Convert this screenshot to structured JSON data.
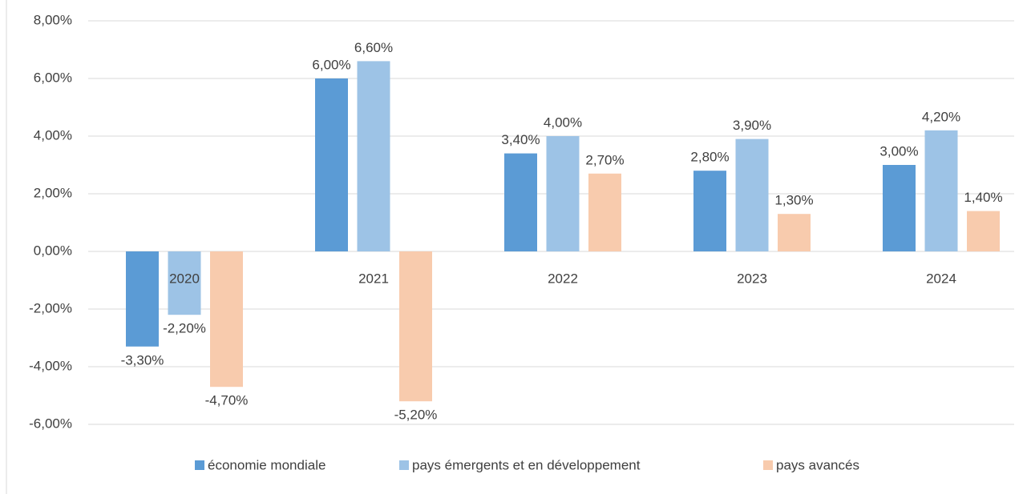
{
  "chart_data": {
    "type": "bar",
    "categories": [
      "2020",
      "2021",
      "2022",
      "2023",
      "2024"
    ],
    "series": [
      {
        "name": "économie mondiale",
        "color": "#5b9bd5",
        "values": [
          -3.3,
          6.0,
          3.4,
          2.8,
          3.0
        ],
        "value_labels": [
          "-3,30%",
          "6,00%",
          "3,40%",
          "2,80%",
          "3,00%"
        ]
      },
      {
        "name": "pays émergents et en développement",
        "color": "#9dc3e6",
        "values": [
          -2.2,
          6.6,
          4.0,
          3.9,
          4.2
        ],
        "value_labels": [
          "-2,20%",
          "6,60%",
          "4,00%",
          "3,90%",
          "4,20%"
        ]
      },
      {
        "name": "pays avancés",
        "color": "#f8cbad",
        "values": [
          -4.7,
          -5.2,
          2.7,
          1.3,
          1.4
        ],
        "value_labels": [
          "-4,70%",
          "-5,20%",
          "2,70%",
          "1,30%",
          "1,40%"
        ]
      }
    ],
    "ylim": [
      -6,
      8
    ],
    "yticks": [
      {
        "value": -6,
        "label": "-6,00%"
      },
      {
        "value": -4,
        "label": "-4,00%"
      },
      {
        "value": -2,
        "label": "-2,00%"
      },
      {
        "value": 0,
        "label": "0,00%"
      },
      {
        "value": 2,
        "label": "2,00%"
      },
      {
        "value": 4,
        "label": "4,00%"
      },
      {
        "value": 6,
        "label": "6,00%"
      },
      {
        "value": 8,
        "label": "8,00%"
      }
    ],
    "grid": true,
    "legend": "bottom"
  }
}
